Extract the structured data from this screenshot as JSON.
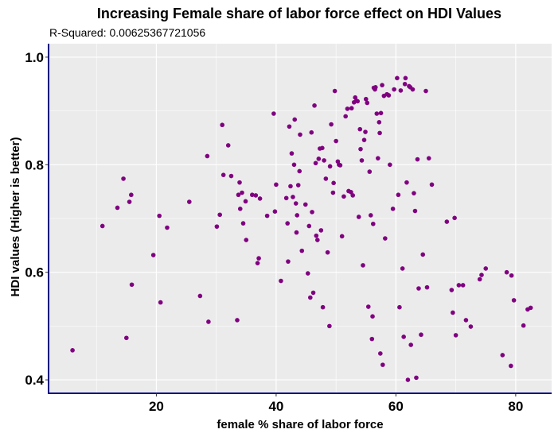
{
  "chart_data": {
    "type": "scatter",
    "title": "Increasing Female share of labor force effect on HDI Values",
    "subtitle": "R-Squared:  0.00625367721056",
    "xlabel": "female % share of labor force",
    "ylabel": "HDI values (Higher is better)",
    "xlim": [
      2,
      86
    ],
    "ylim": [
      0.375,
      1.025
    ],
    "xticks": [
      20,
      40,
      60,
      80
    ],
    "yticks": [
      0.4,
      0.6,
      0.8,
      1.0
    ],
    "xtick_labels": [
      "20",
      "40",
      "60",
      "80"
    ],
    "ytick_labels": [
      "0.4",
      "0.6",
      "0.8",
      "1.0"
    ],
    "grid": true,
    "colors": {
      "point": "#800080",
      "panel": "#ebebeb",
      "grid": "#ffffff",
      "axis": "#000080"
    },
    "points": [
      [
        6.0,
        0.455
      ],
      [
        11.0,
        0.686
      ],
      [
        13.5,
        0.72
      ],
      [
        14.5,
        0.774
      ],
      [
        15.0,
        0.478
      ],
      [
        15.5,
        0.731
      ],
      [
        15.8,
        0.744
      ],
      [
        15.9,
        0.577
      ],
      [
        19.5,
        0.632
      ],
      [
        20.5,
        0.705
      ],
      [
        20.7,
        0.544
      ],
      [
        21.8,
        0.683
      ],
      [
        25.5,
        0.731
      ],
      [
        27.3,
        0.556
      ],
      [
        28.5,
        0.816
      ],
      [
        28.7,
        0.508
      ],
      [
        30.1,
        0.685
      ],
      [
        30.6,
        0.707
      ],
      [
        31.0,
        0.874
      ],
      [
        31.2,
        0.781
      ],
      [
        32.0,
        0.836
      ],
      [
        32.5,
        0.779
      ],
      [
        33.5,
        0.511
      ],
      [
        33.7,
        0.744
      ],
      [
        33.9,
        0.767
      ],
      [
        34.0,
        0.718
      ],
      [
        34.3,
        0.748
      ],
      [
        34.5,
        0.691
      ],
      [
        34.9,
        0.732
      ],
      [
        35.0,
        0.66
      ],
      [
        36.0,
        0.744
      ],
      [
        36.6,
        0.743
      ],
      [
        36.9,
        0.617
      ],
      [
        37.1,
        0.626
      ],
      [
        37.3,
        0.737
      ],
      [
        38.5,
        0.705
      ],
      [
        39.6,
        0.895
      ],
      [
        39.8,
        0.713
      ],
      [
        40.0,
        0.763
      ],
      [
        40.8,
        0.584
      ],
      [
        41.7,
        0.738
      ],
      [
        41.9,
        0.691
      ],
      [
        42.0,
        0.62
      ],
      [
        42.2,
        0.871
      ],
      [
        42.4,
        0.76
      ],
      [
        42.6,
        0.821
      ],
      [
        42.8,
        0.74
      ],
      [
        43.0,
        0.8
      ],
      [
        43.1,
        0.884
      ],
      [
        43.3,
        0.728
      ],
      [
        43.4,
        0.674
      ],
      [
        43.5,
        0.706
      ],
      [
        43.7,
        0.762
      ],
      [
        43.9,
        0.788
      ],
      [
        44.0,
        0.856
      ],
      [
        44.3,
        0.64
      ],
      [
        44.9,
        0.726
      ],
      [
        45.3,
        0.598
      ],
      [
        45.5,
        0.686
      ],
      [
        45.7,
        0.553
      ],
      [
        45.9,
        0.86
      ],
      [
        46.0,
        0.712
      ],
      [
        46.2,
        0.562
      ],
      [
        46.4,
        0.91
      ],
      [
        46.6,
        0.803
      ],
      [
        46.7,
        0.668
      ],
      [
        46.9,
        0.66
      ],
      [
        47.1,
        0.811
      ],
      [
        47.3,
        0.83
      ],
      [
        47.5,
        0.678
      ],
      [
        47.7,
        0.831
      ],
      [
        47.8,
        0.535
      ],
      [
        48.0,
        0.808
      ],
      [
        48.3,
        0.774
      ],
      [
        48.6,
        0.637
      ],
      [
        48.9,
        0.5
      ],
      [
        49.0,
        0.797
      ],
      [
        49.2,
        0.875
      ],
      [
        49.5,
        0.748
      ],
      [
        49.6,
        0.766
      ],
      [
        49.8,
        0.937
      ],
      [
        50.0,
        0.844
      ],
      [
        50.3,
        0.806
      ],
      [
        50.5,
        0.8
      ],
      [
        50.7,
        0.799
      ],
      [
        51.0,
        0.667
      ],
      [
        51.3,
        0.741
      ],
      [
        51.6,
        0.89
      ],
      [
        51.9,
        0.904
      ],
      [
        52.1,
        0.751
      ],
      [
        52.5,
        0.749
      ],
      [
        52.6,
        0.905
      ],
      [
        52.8,
        0.743
      ],
      [
        53.0,
        0.916
      ],
      [
        53.2,
        0.925
      ],
      [
        53.4,
        0.919
      ],
      [
        53.6,
        0.918
      ],
      [
        53.8,
        0.703
      ],
      [
        54.0,
        0.866
      ],
      [
        54.1,
        0.829
      ],
      [
        54.3,
        0.808
      ],
      [
        54.5,
        0.613
      ],
      [
        54.7,
        0.846
      ],
      [
        54.9,
        0.861
      ],
      [
        55.0,
        0.922
      ],
      [
        55.2,
        0.915
      ],
      [
        55.4,
        0.536
      ],
      [
        55.6,
        0.787
      ],
      [
        55.8,
        0.706
      ],
      [
        56.0,
        0.476
      ],
      [
        56.1,
        0.518
      ],
      [
        56.2,
        0.69
      ],
      [
        56.3,
        0.943
      ],
      [
        56.5,
        0.94
      ],
      [
        56.6,
        0.944
      ],
      [
        56.8,
        0.895
      ],
      [
        57.0,
        0.812
      ],
      [
        57.2,
        0.879
      ],
      [
        57.3,
        0.859
      ],
      [
        57.4,
        0.449
      ],
      [
        57.5,
        0.896
      ],
      [
        57.7,
        0.948
      ],
      [
        57.8,
        0.428
      ],
      [
        58.0,
        0.928
      ],
      [
        58.2,
        0.663
      ],
      [
        58.5,
        0.931
      ],
      [
        58.8,
        0.929
      ],
      [
        59.0,
        0.8
      ],
      [
        59.5,
        0.718
      ],
      [
        59.7,
        0.94
      ],
      [
        60.2,
        0.961
      ],
      [
        60.4,
        0.744
      ],
      [
        60.6,
        0.535
      ],
      [
        60.8,
        0.938
      ],
      [
        61.1,
        0.607
      ],
      [
        61.3,
        0.48
      ],
      [
        61.5,
        0.95
      ],
      [
        61.6,
        0.961
      ],
      [
        61.8,
        0.767
      ],
      [
        62.0,
        0.4
      ],
      [
        62.2,
        0.946
      ],
      [
        62.4,
        0.944
      ],
      [
        62.5,
        0.465
      ],
      [
        62.8,
        0.94
      ],
      [
        63.0,
        0.747
      ],
      [
        63.2,
        0.714
      ],
      [
        63.4,
        0.404
      ],
      [
        63.6,
        0.81
      ],
      [
        63.8,
        0.57
      ],
      [
        64.2,
        0.484
      ],
      [
        64.5,
        0.633
      ],
      [
        65.0,
        0.937
      ],
      [
        65.2,
        0.572
      ],
      [
        65.5,
        0.812
      ],
      [
        66.0,
        0.763
      ],
      [
        68.5,
        0.694
      ],
      [
        69.3,
        0.567
      ],
      [
        69.5,
        0.525
      ],
      [
        69.8,
        0.701
      ],
      [
        70.0,
        0.483
      ],
      [
        70.5,
        0.576
      ],
      [
        71.2,
        0.576
      ],
      [
        71.7,
        0.511
      ],
      [
        72.5,
        0.499
      ],
      [
        74.0,
        0.587
      ],
      [
        74.3,
        0.595
      ],
      [
        75.0,
        0.607
      ],
      [
        77.8,
        0.446
      ],
      [
        78.5,
        0.6
      ],
      [
        79.2,
        0.426
      ],
      [
        79.3,
        0.594
      ],
      [
        79.7,
        0.548
      ],
      [
        81.3,
        0.501
      ],
      [
        82.0,
        0.531
      ],
      [
        82.5,
        0.534
      ]
    ]
  }
}
